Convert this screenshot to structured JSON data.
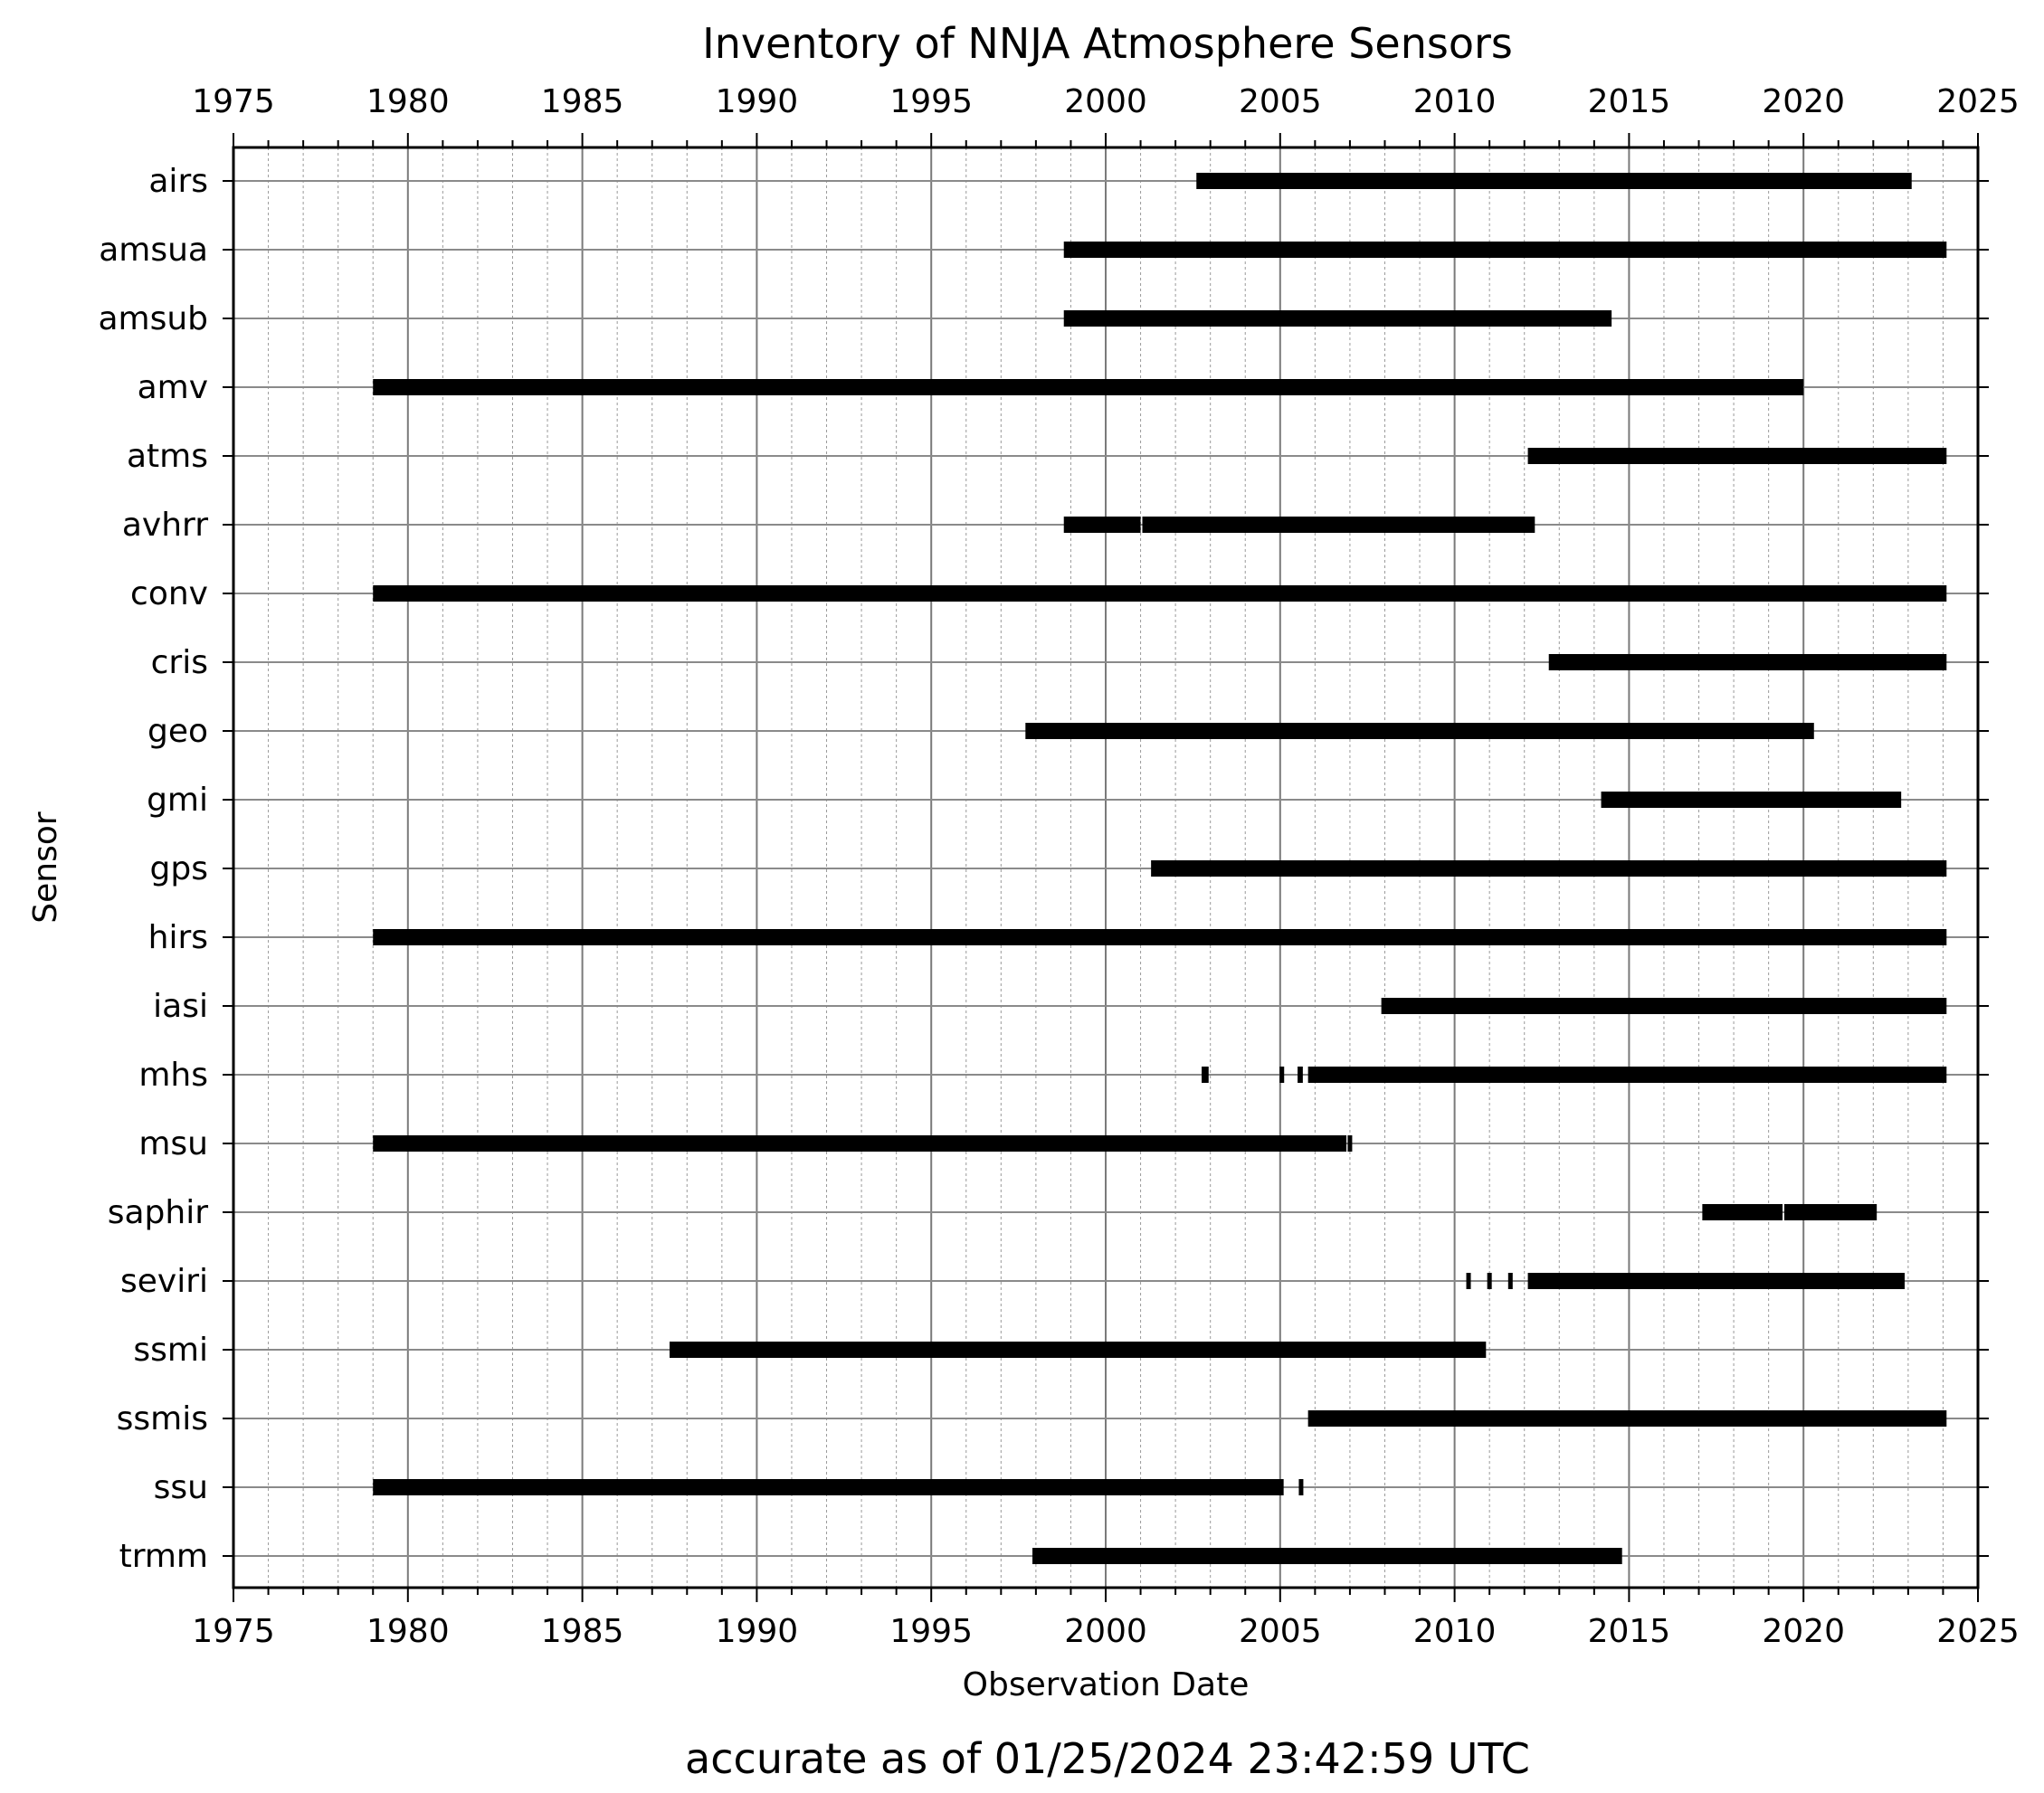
{
  "chart_data": {
    "type": "timeline",
    "title": "Inventory of NNJA Atmosphere Sensors",
    "xlabel": "Observation Date",
    "ylabel": "Sensor",
    "footer": "accurate as of 01/25/2024 23:42:59 UTC",
    "xlim": [
      1975,
      2025
    ],
    "x_ticks": [
      "1975",
      "1980",
      "1985",
      "1990",
      "1995",
      "2000",
      "2005",
      "2010",
      "2015",
      "2020",
      "2025"
    ],
    "grid": true,
    "bar_color": "#000000",
    "sensors": [
      {
        "label": "airs",
        "segments": [
          [
            2002.6,
            2023.1
          ]
        ]
      },
      {
        "label": "amsua",
        "segments": [
          [
            1998.8,
            2024.1
          ]
        ]
      },
      {
        "label": "amsub",
        "segments": [
          [
            1998.8,
            2014.5
          ]
        ]
      },
      {
        "label": "amv",
        "segments": [
          [
            1979.0,
            2020.0
          ]
        ]
      },
      {
        "label": "atms",
        "segments": [
          [
            2012.1,
            2024.1
          ]
        ]
      },
      {
        "label": "avhrr",
        "segments": [
          [
            1998.8,
            2001.0
          ],
          [
            2001.05,
            2012.3
          ]
        ]
      },
      {
        "label": "conv",
        "segments": [
          [
            1979.0,
            2024.1
          ]
        ]
      },
      {
        "label": "cris",
        "segments": [
          [
            2012.7,
            2024.1
          ]
        ]
      },
      {
        "label": "geo",
        "segments": [
          [
            1997.7,
            2020.3
          ]
        ]
      },
      {
        "label": "gmi",
        "segments": [
          [
            2014.2,
            2022.8
          ]
        ]
      },
      {
        "label": "gps",
        "segments": [
          [
            2001.3,
            2024.1
          ]
        ]
      },
      {
        "label": "hirs",
        "segments": [
          [
            1979.0,
            2024.1
          ]
        ]
      },
      {
        "label": "iasi",
        "segments": [
          [
            2007.9,
            2024.1
          ]
        ]
      },
      {
        "label": "mhs",
        "segments": [
          [
            2002.75,
            2002.95
          ],
          [
            2005.0,
            2005.1
          ],
          [
            2005.5,
            2005.65
          ],
          [
            2005.8,
            2024.1
          ]
        ]
      },
      {
        "label": "msu",
        "segments": [
          [
            1979.0,
            2006.9
          ],
          [
            2006.95,
            2007.05
          ]
        ]
      },
      {
        "label": "saphir",
        "segments": [
          [
            2017.1,
            2019.4
          ],
          [
            2019.45,
            2022.1
          ]
        ]
      },
      {
        "label": "seviri",
        "segments": [
          [
            2010.35,
            2010.45
          ],
          [
            2010.95,
            2011.05
          ],
          [
            2011.55,
            2011.65
          ],
          [
            2012.1,
            2022.9
          ]
        ]
      },
      {
        "label": "ssmi",
        "segments": [
          [
            1987.5,
            2010.9
          ]
        ]
      },
      {
        "label": "ssmis",
        "segments": [
          [
            2005.8,
            2024.1
          ]
        ]
      },
      {
        "label": "ssu",
        "segments": [
          [
            1979.0,
            2005.1
          ],
          [
            2005.55,
            2005.65
          ]
        ]
      },
      {
        "label": "trmm",
        "segments": [
          [
            1997.9,
            2014.8
          ]
        ]
      }
    ]
  }
}
